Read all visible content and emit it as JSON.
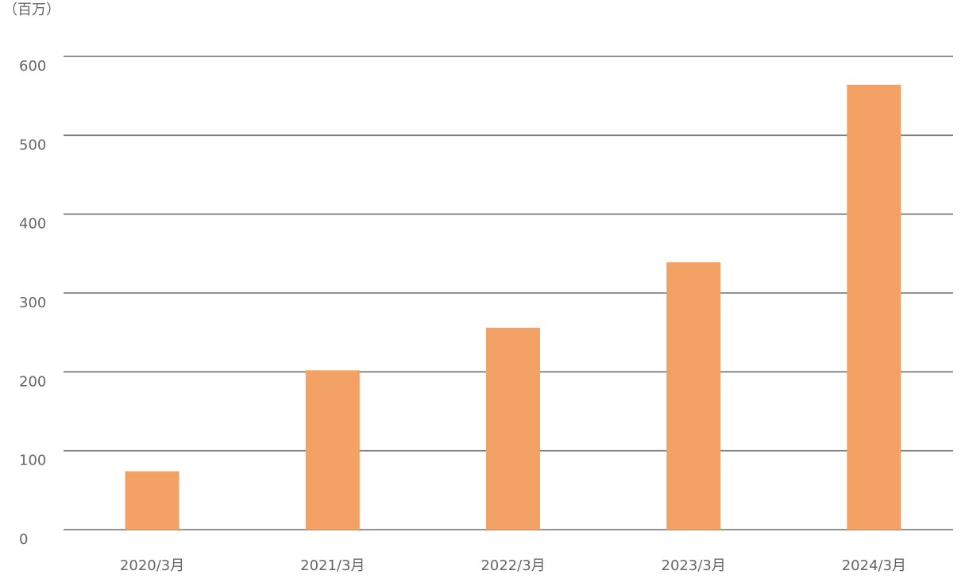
{
  "chart_data": {
    "type": "bar",
    "unit_label": "（百万）",
    "categories": [
      "2020/3月",
      "2021/3月",
      "2022/3月",
      "2023/3月",
      "2024/3月"
    ],
    "values": [
      74,
      202,
      256,
      339,
      564
    ],
    "ylim": [
      0,
      600
    ],
    "yticks": [
      0,
      100,
      200,
      300,
      400,
      500,
      600
    ],
    "grid": true,
    "legend": "none",
    "bar_color": "#f4a165",
    "grid_color": "#6f6f6f"
  }
}
